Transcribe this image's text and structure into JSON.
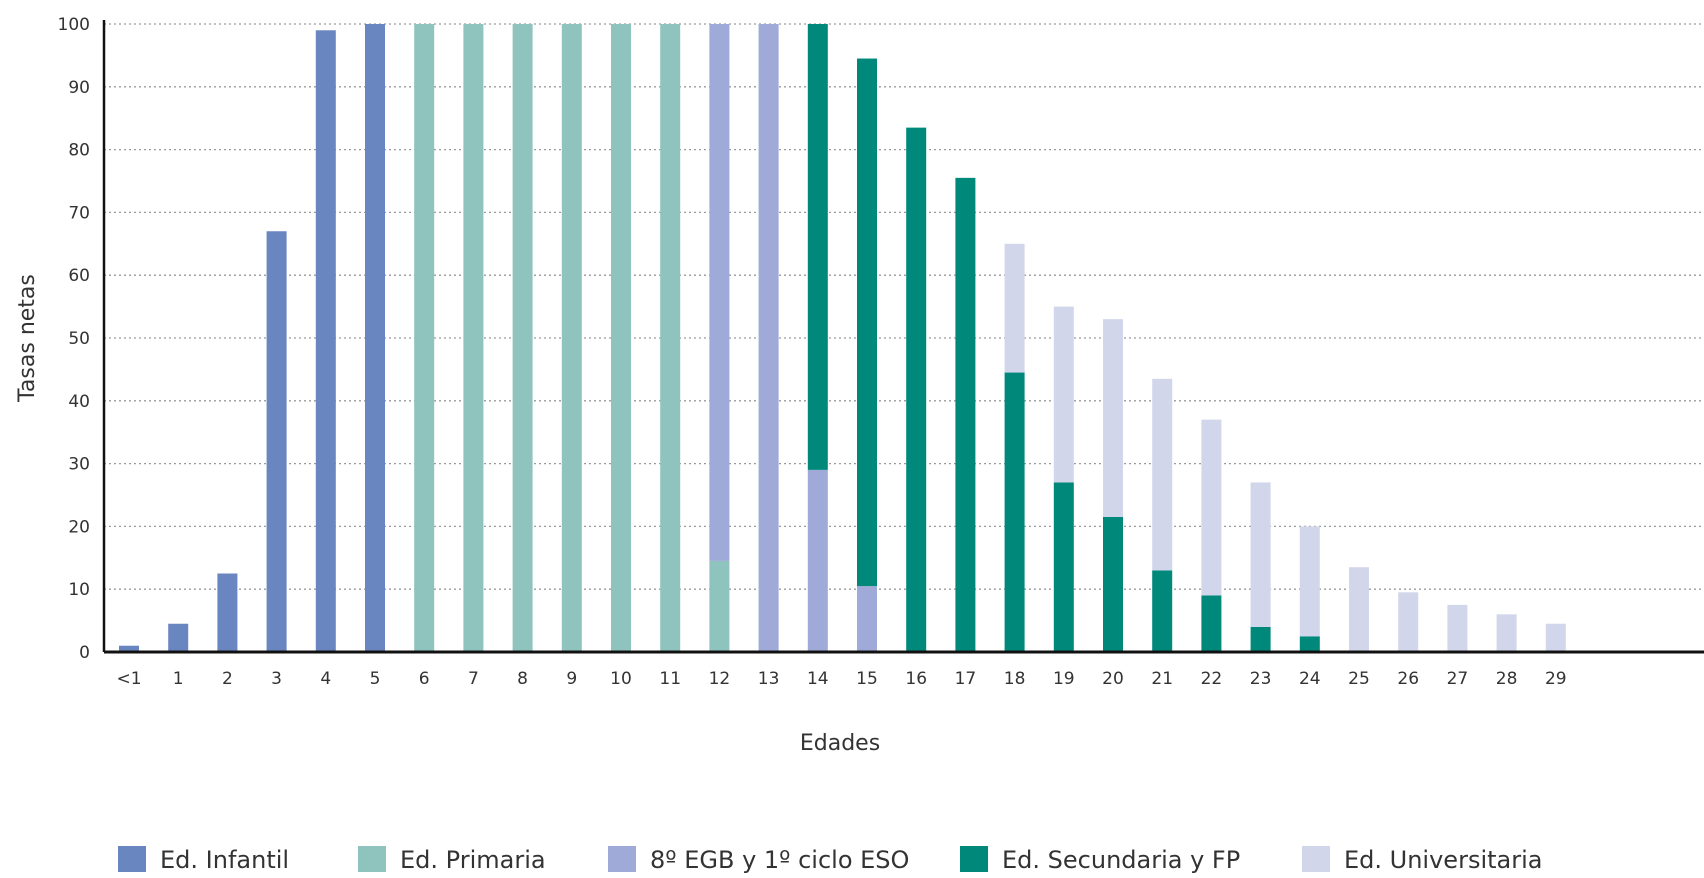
{
  "chart_data": {
    "type": "bar",
    "stacked": true,
    "title": "",
    "xlabel": "Edades",
    "ylabel": "Tasas netas",
    "ylim": [
      0,
      100
    ],
    "yticks": [
      0,
      10,
      20,
      30,
      40,
      50,
      60,
      70,
      80,
      90,
      100
    ],
    "grid": "horizontal-dotted",
    "legend_position": "bottom",
    "categories": [
      "<1",
      "1",
      "2",
      "3",
      "4",
      "5",
      "6",
      "7",
      "8",
      "9",
      "10",
      "11",
      "12",
      "13",
      "14",
      "15",
      "16",
      "17",
      "18",
      "19",
      "20",
      "21",
      "22",
      "23",
      "24",
      "25",
      "26",
      "27",
      "28",
      "29"
    ],
    "series": [
      {
        "name": "Ed. Infantil",
        "color": "#6a86c0",
        "values": [
          1,
          4.5,
          12.5,
          67,
          99,
          100,
          0,
          0,
          0,
          0,
          0,
          0,
          0,
          0,
          0,
          0,
          0,
          0,
          0,
          0,
          0,
          0,
          0,
          0,
          0,
          0,
          0,
          0,
          0,
          0
        ]
      },
      {
        "name": "Ed. Primaria",
        "color": "#8fc3bd",
        "values": [
          0,
          0,
          0,
          0,
          0,
          0,
          100,
          100,
          100,
          100,
          100,
          100,
          14.5,
          0,
          0,
          0,
          0,
          0,
          0,
          0,
          0,
          0,
          0,
          0,
          0,
          0,
          0,
          0,
          0,
          0
        ]
      },
      {
        "name": "8º EGB y 1º ciclo ESO",
        "color": "#a0aad8",
        "values": [
          0,
          0,
          0,
          0,
          0,
          0,
          0,
          0,
          0,
          0,
          0,
          0,
          85.5,
          100,
          29,
          10.5,
          0,
          0,
          0,
          0,
          0,
          0,
          0,
          0,
          0,
          0,
          0,
          0,
          0,
          0
        ]
      },
      {
        "name": "Ed. Secundaria y FP",
        "color": "#00897b",
        "values": [
          0,
          0,
          0,
          0,
          0,
          0,
          0,
          0,
          0,
          0,
          0,
          0,
          0,
          0,
          71,
          84,
          83.5,
          75.5,
          44.5,
          27,
          21.5,
          13,
          9,
          4,
          2.5,
          0,
          0,
          0,
          0,
          0
        ]
      },
      {
        "name": "Ed. Universitaria",
        "color": "#d1d6ea",
        "values": [
          0,
          0,
          0,
          0,
          0,
          0,
          0,
          0,
          0,
          0,
          0,
          0,
          0,
          0,
          0,
          0,
          0,
          0,
          20.5,
          28,
          31.5,
          30.5,
          28,
          23,
          17.5,
          13.5,
          9.5,
          7.5,
          6,
          4.5
        ]
      }
    ]
  }
}
